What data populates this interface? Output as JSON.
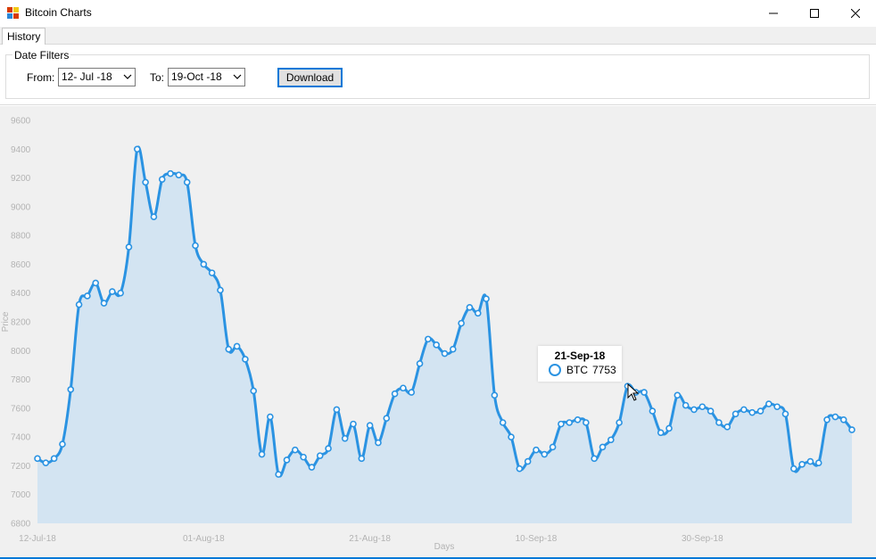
{
  "window": {
    "title": "Bitcoin Charts"
  },
  "tabs": [
    {
      "label": "History"
    }
  ],
  "filters": {
    "group_title": "Date Filters",
    "from_label": "From:",
    "from_value": "12- Jul -18",
    "to_label": "To:",
    "to_value": "19-Oct -18",
    "download_label": "Download"
  },
  "colors": {
    "series": "#2b93e2",
    "fill": "#d3e4f2",
    "axis_text": "#b3b3b3"
  },
  "chart_data": {
    "type": "area",
    "xlabel": "Days",
    "ylabel": "Price",
    "ylim": [
      6800,
      9600
    ],
    "yticks": [
      6800,
      7000,
      7200,
      7400,
      7600,
      7800,
      8000,
      8200,
      8400,
      8600,
      8800,
      9000,
      9200,
      9400,
      9600
    ],
    "xtick_labels": [
      "12-Jul-18",
      "01-Aug-18",
      "21-Aug-18",
      "10-Sep-18",
      "30-Sep-18"
    ],
    "xtick_days": [
      0,
      20,
      40,
      60,
      80
    ],
    "legend": "none",
    "series": [
      {
        "name": "BTC",
        "values": [
          7250,
          7220,
          7250,
          7350,
          7730,
          8320,
          8380,
          8470,
          8330,
          8410,
          8400,
          8720,
          9400,
          9170,
          8930,
          9190,
          9230,
          9220,
          9170,
          8730,
          8600,
          8540,
          8420,
          8010,
          8030,
          7940,
          7720,
          7280,
          7540,
          7140,
          7240,
          7310,
          7260,
          7190,
          7270,
          7320,
          7590,
          7390,
          7490,
          7250,
          7480,
          7360,
          7530,
          7700,
          7740,
          7710,
          7910,
          8080,
          8040,
          7980,
          8010,
          8190,
          8300,
          8260,
          8360,
          7690,
          7500,
          7400,
          7180,
          7230,
          7310,
          7280,
          7330,
          7490,
          7500,
          7520,
          7500,
          7250,
          7330,
          7380,
          7500,
          7753,
          7710,
          7710,
          7580,
          7430,
          7460,
          7690,
          7620,
          7590,
          7610,
          7580,
          7500,
          7470,
          7560,
          7590,
          7570,
          7580,
          7630,
          7610,
          7560,
          7180,
          7210,
          7230,
          7220,
          7520,
          7540,
          7520,
          7450
        ]
      }
    ]
  },
  "tooltip": {
    "date": "21-Sep-18",
    "series": "BTC",
    "value": "7753"
  }
}
